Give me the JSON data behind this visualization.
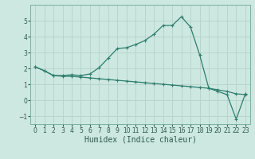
{
  "xlabel": "Humidex (Indice chaleur)",
  "background_color": "#cce8e0",
  "grid_color": "#b8d4cc",
  "line_color": "#2e7d6e",
  "xlim": [
    -0.5,
    23.5
  ],
  "ylim": [
    -1.5,
    6.0
  ],
  "yticks": [
    -1,
    0,
    1,
    2,
    3,
    4,
    5
  ],
  "xticks": [
    0,
    1,
    2,
    3,
    4,
    5,
    6,
    7,
    8,
    9,
    10,
    11,
    12,
    13,
    14,
    15,
    16,
    17,
    18,
    19,
    20,
    21,
    22,
    23
  ],
  "curve1_x": [
    0,
    1,
    2,
    3,
    4,
    5,
    6,
    7,
    8,
    9,
    10,
    11,
    12,
    13,
    14,
    15,
    16,
    17,
    18,
    19,
    20,
    21,
    22,
    23
  ],
  "curve1_y": [
    2.1,
    1.85,
    1.55,
    1.55,
    1.6,
    1.55,
    1.65,
    2.05,
    2.65,
    3.25,
    3.3,
    3.5,
    3.75,
    4.15,
    4.7,
    4.7,
    5.25,
    4.6,
    2.85,
    0.75,
    0.55,
    0.35,
    -1.2,
    0.4
  ],
  "curve2_x": [
    0,
    1,
    2,
    3,
    4,
    5,
    6,
    7,
    8,
    9,
    10,
    11,
    12,
    13,
    14,
    15,
    16,
    17,
    18,
    19,
    20,
    21,
    22,
    23
  ],
  "curve2_y": [
    2.1,
    1.85,
    1.55,
    1.5,
    1.5,
    1.45,
    1.4,
    1.35,
    1.3,
    1.25,
    1.2,
    1.15,
    1.1,
    1.05,
    1.0,
    0.95,
    0.9,
    0.85,
    0.8,
    0.75,
    0.65,
    0.55,
    0.4,
    0.35
  ],
  "spine_color": "#7ab0a0",
  "tick_color": "#2e5a50",
  "xlabel_fontsize": 7,
  "tick_fontsize": 5.5
}
